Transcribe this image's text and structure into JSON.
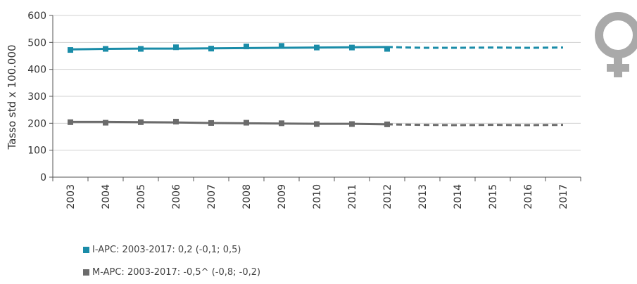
{
  "chart_data": {
    "type": "line",
    "ylabel": "Tasso std x 100.000",
    "ylim": [
      0,
      600
    ],
    "yticks": [
      0,
      100,
      200,
      300,
      400,
      500,
      600
    ],
    "categories": [
      "2003",
      "2004",
      "2005",
      "2006",
      "2007",
      "2008",
      "2009",
      "2010",
      "2011",
      "2012",
      "2013",
      "2014",
      "2015",
      "2016",
      "2017"
    ],
    "grid": true,
    "legend_position": "bottom-left",
    "series": [
      {
        "name": "I-APC: 2003-2017: 0,2 (-0,1; 0,5)",
        "color": "#1a8ca8",
        "observed": [
          472,
          476,
          476,
          482,
          477,
          485,
          487,
          481,
          481,
          476
        ],
        "fitted": [
          474,
          476,
          477,
          477,
          478,
          479,
          480,
          481,
          482,
          483,
          480,
          480,
          481,
          480,
          481
        ]
      },
      {
        "name": "M-APC: 2003-2017: -0,5^ (-0,8; -0,2)",
        "color": "#6b6b6b",
        "observed": [
          204,
          202,
          204,
          206,
          201,
          202,
          200,
          197,
          197,
          196
        ],
        "fitted": [
          205,
          205,
          204,
          203,
          201,
          200,
          199,
          198,
          198,
          196,
          194,
          193,
          194,
          193,
          194
        ]
      }
    ],
    "symbol": {
      "name": "female-symbol-icon",
      "color": "#a9a9a9"
    }
  }
}
